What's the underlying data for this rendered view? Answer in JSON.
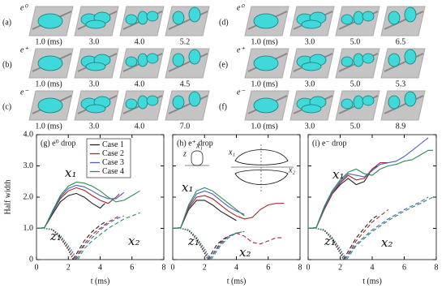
{
  "image_rows": [
    {
      "label": "(a)",
      "charge": "e⁰",
      "times": [
        "1.0 (ms)",
        "3.0",
        "4.0",
        "5.2"
      ]
    },
    {
      "label": "(b)",
      "charge": "e⁺",
      "times": [
        "1.0 (ms)",
        "3.0",
        "4.0",
        "4.5"
      ]
    },
    {
      "label": "(c)",
      "charge": "e⁻",
      "times": [
        "1.0 (ms)",
        "3.0",
        "4.0",
        "7.0"
      ]
    },
    {
      "label": "(d)",
      "charge": "e⁰",
      "times": [
        "1.0 (ms)",
        "3.0",
        "5.0",
        "6.5"
      ]
    },
    {
      "label": "(e)",
      "charge": "e⁺",
      "times": [
        "1.0 (ms)",
        "3.0",
        "5.0",
        "5.3"
      ]
    },
    {
      "label": "(f)",
      "charge": "e⁻",
      "times": [
        "1.0 (ms)",
        "3.0",
        "5.0",
        "8.9"
      ]
    }
  ],
  "chart_data": [
    {
      "type": "line",
      "title": "(g) e⁰ drop",
      "xlabel": "t (ms)",
      "ylabel": "Half width",
      "xlim": [
        0,
        8
      ],
      "xticks": [
        0,
        2,
        4,
        6,
        8
      ],
      "ylim": [
        0,
        4
      ],
      "yticks": [
        0,
        {
          "value": 1,
          "label": "1.0"
        },
        {
          "value": 2,
          "label": "2.0"
        },
        {
          "value": 3,
          "label": "3.0"
        },
        {
          "value": 4,
          "label": "4.0"
        }
      ],
      "legend": "upper center",
      "annotations": [
        "x₁",
        "z₁",
        "x₂"
      ],
      "series": [
        {
          "name": "Case 1",
          "color": "#222222",
          "dash": "solid",
          "x": [
            0,
            0.5,
            1,
            1.5,
            2,
            2.5,
            3,
            3.5,
            4,
            4.3
          ],
          "values": [
            1,
            1.02,
            1.45,
            1.85,
            2.05,
            2.12,
            2.0,
            1.8,
            1.65,
            1.8
          ]
        },
        {
          "name": "Case 2",
          "color": "#a52a2a",
          "dash": "solid",
          "x": [
            0,
            0.5,
            1,
            1.5,
            2,
            2.5,
            3,
            3.5,
            4,
            4.5,
            5,
            5.2
          ],
          "values": [
            1,
            1.02,
            1.5,
            1.95,
            2.2,
            2.3,
            2.22,
            2.05,
            1.9,
            1.8,
            2.0,
            2.1
          ]
        },
        {
          "name": "Case 3",
          "color": "#4a5fc1",
          "dash": "solid",
          "x": [
            0,
            0.5,
            1,
            1.5,
            2,
            2.5,
            3,
            3.5,
            4,
            4.5,
            5,
            5.5
          ],
          "values": [
            1,
            1.02,
            1.5,
            2.0,
            2.28,
            2.38,
            2.33,
            2.2,
            2.05,
            1.95,
            1.95,
            2.15
          ]
        },
        {
          "name": "Case 4",
          "color": "#2e8b57",
          "dash": "solid",
          "x": [
            0,
            0.5,
            1,
            1.5,
            2,
            2.5,
            3,
            3.5,
            4,
            4.5,
            5,
            5.5,
            6,
            6.5
          ],
          "values": [
            1,
            1.02,
            1.55,
            2.05,
            2.35,
            2.48,
            2.45,
            2.35,
            2.2,
            2.0,
            1.85,
            1.9,
            2.05,
            2.2
          ]
        },
        {
          "color": "#222222",
          "dash": "dotted",
          "x": [
            0,
            0.5,
            1,
            1.5,
            2,
            2.3
          ],
          "values": [
            1,
            1,
            0.95,
            0.7,
            0.3,
            0
          ]
        },
        {
          "color": "#a52a2a",
          "dash": "dotted",
          "x": [
            0,
            0.5,
            1,
            1.5,
            2,
            2.4
          ],
          "values": [
            1,
            1,
            0.96,
            0.72,
            0.35,
            0
          ]
        },
        {
          "color": "#4a5fc1",
          "dash": "dotted",
          "x": [
            0,
            0.5,
            1,
            1.5,
            2,
            2.5
          ],
          "values": [
            1,
            1,
            0.97,
            0.75,
            0.4,
            0
          ]
        },
        {
          "color": "#2e8b57",
          "dash": "dotted",
          "x": [
            0,
            0.5,
            1,
            1.5,
            2,
            2.6
          ],
          "values": [
            1,
            1,
            0.98,
            0.78,
            0.45,
            0
          ]
        },
        {
          "color": "#222222",
          "dash": "dashed",
          "x": [
            2.3,
            3,
            3.5,
            4,
            4.3
          ],
          "values": [
            0,
            0.6,
            0.9,
            1.1,
            1.2
          ]
        },
        {
          "color": "#a52a2a",
          "dash": "dashed",
          "x": [
            2.4,
            3,
            3.5,
            4,
            4.5,
            5.2
          ],
          "values": [
            0,
            0.5,
            0.8,
            1.0,
            1.2,
            1.4
          ]
        },
        {
          "color": "#4a5fc1",
          "dash": "dashed",
          "x": [
            2.5,
            3,
            3.5,
            4,
            4.5,
            5,
            5.5
          ],
          "values": [
            0,
            0.45,
            0.7,
            0.95,
            1.15,
            1.3,
            1.4
          ]
        },
        {
          "color": "#2e8b57",
          "dash": "dashed",
          "x": [
            2.6,
            3,
            3.5,
            4,
            4.5,
            5,
            5.5,
            6,
            6.5
          ],
          "values": [
            0,
            0.35,
            0.6,
            0.8,
            1.0,
            1.15,
            1.3,
            1.4,
            1.5
          ]
        }
      ]
    },
    {
      "type": "line",
      "title": "(h) e⁺ drop",
      "xlabel": "t (ms)",
      "xlim": [
        0,
        8
      ],
      "xticks": [
        0,
        2,
        4,
        6,
        8
      ],
      "ylim": [
        0,
        4
      ],
      "yticks": [
        0,
        {
          "value": 1,
          "label": "1.0"
        },
        {
          "value": 2,
          "label": "2.0"
        },
        {
          "value": 3,
          "label": "3.0"
        },
        {
          "value": 4,
          "label": "4.0"
        }
      ],
      "annotations": [
        "x₁",
        "z₁",
        "x₂"
      ],
      "inset_labels": [
        "z",
        "x₁",
        "x₁",
        "x₂"
      ],
      "series": [
        {
          "color": "#222222",
          "dash": "solid",
          "x": [
            0,
            0.5,
            1,
            1.5,
            2,
            2.5,
            3,
            3.5,
            4
          ],
          "values": [
            1,
            1.02,
            1.6,
            1.9,
            1.9,
            1.75,
            1.55,
            1.4,
            1.25
          ]
        },
        {
          "color": "#a52a2a",
          "dash": "solid",
          "x": [
            0,
            0.5,
            1,
            1.5,
            2,
            2.5,
            3,
            3.5,
            4,
            4.5,
            5,
            5.5,
            6,
            6.5,
            7
          ],
          "values": [
            1,
            1.02,
            1.65,
            2.0,
            2.05,
            1.95,
            1.75,
            1.55,
            1.4,
            1.3,
            1.35,
            1.6,
            1.75,
            1.8,
            1.8
          ]
        },
        {
          "color": "#4a5fc1",
          "dash": "solid",
          "x": [
            0,
            0.5,
            1,
            1.5,
            2,
            2.5,
            3,
            3.5,
            4,
            4.5
          ],
          "values": [
            1,
            1.02,
            1.7,
            2.1,
            2.2,
            2.1,
            1.9,
            1.7,
            1.55,
            1.45
          ]
        },
        {
          "color": "#2e8b57",
          "dash": "solid",
          "x": [
            0,
            0.5,
            1,
            1.5,
            2,
            2.5,
            3,
            3.5,
            4,
            4.5
          ],
          "values": [
            1,
            1.02,
            1.75,
            2.2,
            2.3,
            2.2,
            2.0,
            1.8,
            1.6,
            1.4
          ]
        },
        {
          "color": "#222222",
          "dash": "dotted",
          "x": [
            0,
            0.5,
            1,
            1.5,
            2,
            2.2
          ],
          "values": [
            1,
            1,
            0.93,
            0.65,
            0.2,
            0
          ]
        },
        {
          "color": "#a52a2a",
          "dash": "dotted",
          "x": [
            0,
            0.5,
            1,
            1.5,
            2,
            2.3
          ],
          "values": [
            1,
            1,
            0.94,
            0.68,
            0.25,
            0
          ]
        },
        {
          "color": "#4a5fc1",
          "dash": "dotted",
          "x": [
            0,
            0.5,
            1,
            1.5,
            2,
            2.3
          ],
          "values": [
            1,
            1,
            0.95,
            0.7,
            0.3,
            0
          ]
        },
        {
          "color": "#2e8b57",
          "dash": "dotted",
          "x": [
            0,
            0.5,
            1,
            1.5,
            2,
            2.4
          ],
          "values": [
            1,
            1,
            0.96,
            0.72,
            0.35,
            0
          ]
        },
        {
          "color": "#222222",
          "dash": "dashed",
          "x": [
            2.2,
            2.8,
            3.3,
            4
          ],
          "values": [
            0,
            0.5,
            0.7,
            0.85
          ]
        },
        {
          "color": "#a52a2a",
          "dash": "dashed",
          "x": [
            2.3,
            3,
            3.5,
            4,
            4.5,
            5,
            5.5,
            6,
            6.5,
            7
          ],
          "values": [
            0,
            0.55,
            0.75,
            0.85,
            0.75,
            0.55,
            0.5,
            0.6,
            0.7,
            0.7
          ]
        },
        {
          "color": "#4a5fc1",
          "dash": "dashed",
          "x": [
            2.3,
            3,
            3.5,
            4,
            4.5
          ],
          "values": [
            0,
            0.5,
            0.75,
            0.85,
            0.9
          ]
        },
        {
          "color": "#2e8b57",
          "dash": "dashed",
          "x": [
            2.4,
            3,
            3.5,
            4,
            4.5
          ],
          "values": [
            0,
            0.45,
            0.7,
            0.85,
            0.9
          ]
        }
      ]
    },
    {
      "type": "line",
      "title": "(i) e⁻ drop",
      "xlabel": "t (ms)",
      "xlim": [
        0,
        8
      ],
      "xticks": [
        0,
        2,
        4,
        6,
        8
      ],
      "ylim": [
        0,
        4
      ],
      "yticks": [
        0,
        {
          "value": 1,
          "label": "1.0"
        },
        {
          "value": 2,
          "label": "2.0"
        },
        {
          "value": 3,
          "label": "3.0"
        },
        {
          "value": 4,
          "label": "4.0"
        }
      ],
      "annotations": [
        "x₁",
        "z₁",
        "x₂"
      ],
      "series": [
        {
          "color": "#222222",
          "dash": "solid",
          "x": [
            0,
            0.5,
            1,
            1.5,
            2,
            2.5,
            3,
            3.5,
            4,
            4.3
          ],
          "values": [
            1,
            1.02,
            1.6,
            2.1,
            2.4,
            2.6,
            2.4,
            2.5,
            2.9,
            3.0
          ]
        },
        {
          "color": "#a52a2a",
          "dash": "solid",
          "x": [
            0,
            0.5,
            1,
            1.5,
            2,
            2.5,
            3,
            3.5,
            4,
            4.5,
            5
          ],
          "values": [
            1,
            1.02,
            1.6,
            2.1,
            2.45,
            2.7,
            2.55,
            2.6,
            2.9,
            3.1,
            3.1
          ]
        },
        {
          "color": "#4a5fc1",
          "dash": "solid",
          "x": [
            0,
            0.5,
            1,
            1.5,
            2,
            2.5,
            3,
            3.5,
            4,
            4.5,
            5,
            5.5,
            6,
            6.5,
            7,
            7.5
          ],
          "values": [
            1,
            1.02,
            1.65,
            2.15,
            2.5,
            2.75,
            2.7,
            2.65,
            2.85,
            3.05,
            3.1,
            3.15,
            3.3,
            3.5,
            3.7,
            3.9
          ]
        },
        {
          "color": "#2e8b57",
          "dash": "solid",
          "x": [
            0,
            0.5,
            1,
            1.5,
            2,
            2.5,
            3,
            3.5,
            4,
            4.5,
            5,
            5.5,
            6,
            6.5,
            7,
            7.5,
            7.8
          ],
          "values": [
            1,
            1.02,
            1.7,
            2.2,
            2.55,
            2.8,
            2.9,
            2.75,
            2.7,
            2.9,
            3.0,
            3.05,
            3.15,
            3.2,
            3.35,
            3.5,
            3.5
          ]
        },
        {
          "color": "#222222",
          "dash": "dotted",
          "x": [
            0,
            0.5,
            1,
            1.5,
            2,
            2.2
          ],
          "values": [
            1,
            1,
            0.93,
            0.65,
            0.2,
            0
          ]
        },
        {
          "color": "#a52a2a",
          "dash": "dotted",
          "x": [
            0,
            0.5,
            1,
            1.5,
            2,
            2.3
          ],
          "values": [
            1,
            1,
            0.94,
            0.68,
            0.25,
            0
          ]
        },
        {
          "color": "#4a5fc1",
          "dash": "dotted",
          "x": [
            0,
            0.5,
            1,
            1.5,
            2,
            2.3
          ],
          "values": [
            1,
            1,
            0.95,
            0.7,
            0.3,
            0
          ]
        },
        {
          "color": "#2e8b57",
          "dash": "dotted",
          "x": [
            0,
            0.5,
            1,
            1.5,
            2,
            2.4
          ],
          "values": [
            1,
            1,
            0.96,
            0.72,
            0.35,
            0
          ]
        },
        {
          "color": "#222222",
          "dash": "dashed",
          "x": [
            2.2,
            3,
            3.5,
            4,
            4.3
          ],
          "values": [
            0,
            0.7,
            1.0,
            1.3,
            1.4
          ]
        },
        {
          "color": "#a52a2a",
          "dash": "dashed",
          "x": [
            2.3,
            3,
            3.5,
            4,
            4.5,
            5
          ],
          "values": [
            0,
            0.6,
            0.9,
            1.2,
            1.4,
            1.6
          ]
        },
        {
          "color": "#4a5fc1",
          "dash": "dashed",
          "x": [
            2.3,
            3,
            4,
            5,
            6,
            7,
            7.5
          ],
          "values": [
            0,
            0.5,
            0.95,
            1.3,
            1.6,
            1.85,
            2.0
          ]
        },
        {
          "color": "#2e8b57",
          "dash": "dashed",
          "x": [
            2.4,
            3,
            4,
            5,
            6,
            7,
            7.8
          ],
          "values": [
            0,
            0.45,
            0.9,
            1.25,
            1.55,
            1.8,
            2.0
          ]
        }
      ]
    }
  ]
}
